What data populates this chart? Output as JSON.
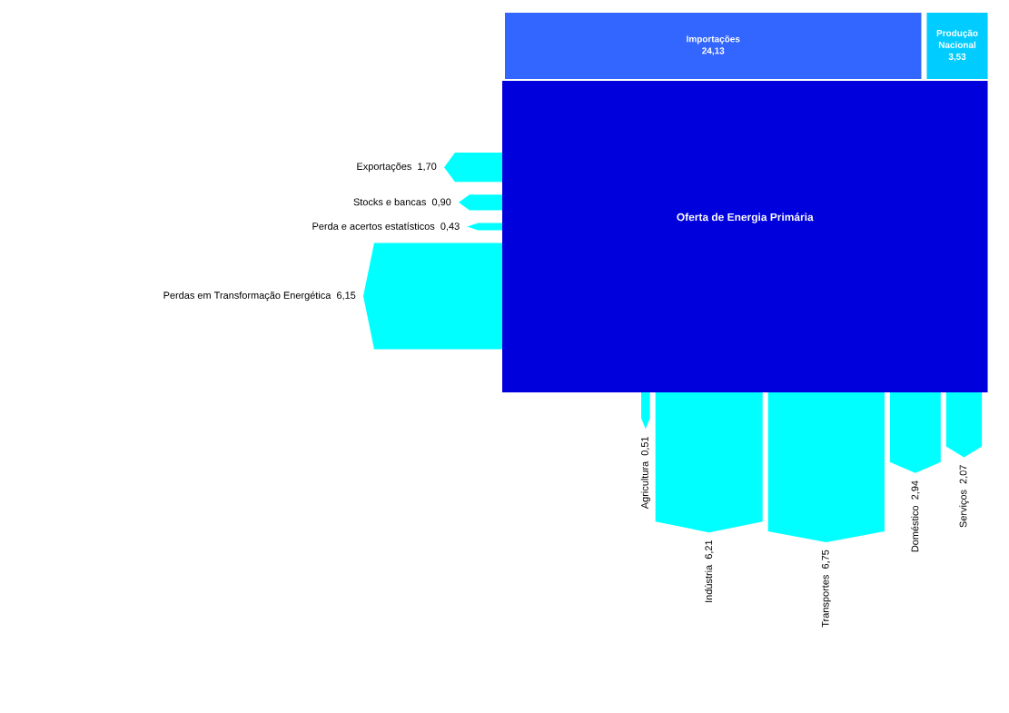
{
  "chart_data": {
    "type": "other",
    "annotations": [
      "Oferta de Energia Primária"
    ],
    "categories": [
      "Importações",
      "Produção Nacional",
      "Exportações",
      "Stocks e bancas",
      "Perda e acertos estatísticos",
      "Perdas em Transformação Energética",
      "Agricultura",
      "Indústria",
      "Transportes",
      "Doméstico",
      "Serviços"
    ],
    "values": [
      24.13,
      3.53,
      1.7,
      0.9,
      0.43,
      6.15,
      0.51,
      6.21,
      6.75,
      2.94,
      2.07
    ],
    "value_labels": [
      "24,13",
      "3,53",
      "1,70",
      "0,90",
      "0,43",
      "6,15",
      "0,51",
      "6,21",
      "6,75",
      "2,94",
      "2,07"
    ],
    "colors": [
      "#3366ff",
      "#00ccff",
      "#00ffff",
      "#00ffff",
      "#00ffff",
      "#00ffff",
      "#00ffff",
      "#00ffff",
      "#00ffff",
      "#00ffff",
      "#00ffff"
    ]
  }
}
